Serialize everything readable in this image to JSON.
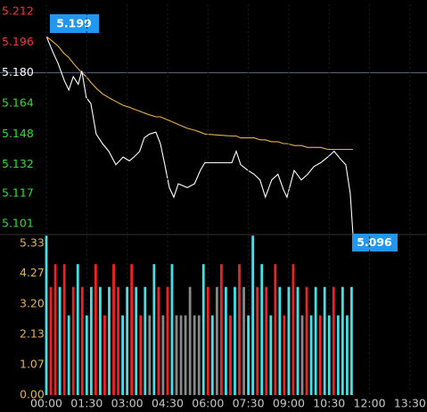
{
  "chart_data": [
    {
      "type": "line",
      "x": [
        0,
        16,
        26,
        40,
        50,
        60,
        71,
        79,
        89,
        99,
        111,
        125,
        139,
        155,
        171,
        185,
        195,
        208,
        218,
        230,
        244,
        254,
        264,
        274,
        284,
        294,
        314,
        330,
        343,
        353,
        413,
        423,
        433,
        449,
        463,
        476,
        488,
        502,
        516,
        528,
        536,
        552,
        568,
        582,
        596,
        611,
        627,
        641,
        655,
        667,
        677,
        683
      ],
      "series": [
        {
          "color": "#ffffff",
          "values": [
            5.199,
            5.19,
            5.185,
            5.176,
            5.171,
            5.178,
            5.174,
            5.181,
            5.167,
            5.164,
            5.148,
            5.143,
            5.139,
            5.132,
            5.136,
            5.134,
            5.136,
            5.139,
            5.146,
            5.148,
            5.149,
            5.143,
            5.132,
            5.12,
            5.115,
            5.122,
            5.12,
            5.122,
            5.129,
            5.133,
            5.133,
            5.139,
            5.132,
            5.129,
            5.127,
            5.124,
            5.115,
            5.124,
            5.127,
            5.119,
            5.115,
            5.129,
            5.124,
            5.127,
            5.131,
            5.133,
            5.136,
            5.139,
            5.135,
            5.132,
            5.117,
            5.096
          ]
        },
        {
          "color": "#e8b04a",
          "values": [
            5.199,
            5.196,
            5.194,
            5.19,
            5.188,
            5.185,
            5.182,
            5.18,
            5.178,
            5.175,
            5.172,
            5.169,
            5.167,
            5.165,
            5.163,
            5.162,
            5.161,
            5.16,
            5.159,
            5.158,
            5.157,
            5.157,
            5.156,
            5.155,
            5.154,
            5.153,
            5.151,
            5.15,
            5.149,
            5.148,
            5.147,
            5.147,
            5.146,
            5.146,
            5.146,
            5.145,
            5.145,
            5.144,
            5.144,
            5.143,
            5.143,
            5.142,
            5.142,
            5.141,
            5.141,
            5.141,
            5.14,
            5.14,
            5.14,
            5.14,
            5.14,
            5.14
          ]
        }
      ],
      "xlim": [
        0,
        848
      ],
      "ylim": [
        5.0955,
        5.2157
      ],
      "yticks": [
        5.212,
        5.196,
        {
          "value": 5.18,
          "label": "5.180"
        },
        5.164,
        5.148,
        5.132,
        5.117,
        5.101
      ],
      "ytick_colors": [
        "#ff3333",
        "#ff3333",
        "#ffffff",
        "#33dd33",
        "#33dd33",
        "#33dd33",
        "#33dd33",
        "#33dd33"
      ],
      "baseline": 5.18,
      "label_color": "#2196f3"
    },
    {
      "type": "bar",
      "x": [
        0,
        10,
        20,
        30,
        40,
        50,
        60,
        70,
        80,
        90,
        100,
        110,
        120,
        130,
        140,
        150,
        160,
        170,
        180,
        190,
        200,
        210,
        220,
        230,
        240,
        250,
        260,
        270,
        280,
        290,
        300,
        310,
        320,
        330,
        340,
        350,
        360,
        370,
        380,
        390,
        400,
        410,
        420,
        430,
        440,
        450,
        460,
        470,
        480,
        490,
        500,
        510,
        520,
        530,
        540,
        550,
        560,
        570,
        580,
        590,
        600,
        610,
        620,
        630,
        640,
        650,
        660,
        670,
        680
      ],
      "values": [
        5.6,
        3.8,
        4.6,
        3.8,
        4.6,
        2.8,
        3.8,
        4.6,
        3.8,
        2.8,
        3.8,
        4.6,
        3.8,
        2.8,
        3.8,
        4.6,
        3.8,
        2.8,
        3.8,
        4.6,
        3.8,
        2.8,
        3.8,
        2.8,
        4.6,
        3.8,
        2.8,
        3.8,
        4.6,
        2.8,
        2.8,
        2.8,
        3.8,
        2.8,
        2.8,
        4.6,
        3.8,
        2.8,
        3.8,
        4.6,
        3.8,
        2.8,
        3.8,
        4.6,
        3.8,
        2.8,
        5.6,
        3.8,
        4.6,
        3.8,
        2.8,
        4.6,
        3.8,
        2.8,
        3.8,
        4.6,
        3.8,
        2.8,
        3.8,
        2.8,
        3.8,
        2.8,
        3.8,
        2.8,
        3.8,
        2.8,
        3.8,
        2.8,
        3.8
      ],
      "colors": [
        "#44e0e8",
        "#ee2222",
        "#ee2222",
        "#44e0e8",
        "#ee2222",
        "#44e0e8",
        "#ee2222",
        "#44e0e8",
        "#ee2222",
        "#44e0e8",
        "#44e0e8",
        "#ee2222",
        "#44e0e8",
        "#ee2222",
        "#44e0e8",
        "#ee2222",
        "#ee2222",
        "#44e0e8",
        "#44e0e8",
        "#ee2222",
        "#44e0e8",
        "#ee2222",
        "#44e0e8",
        "#888888",
        "#44e0e8",
        "#ee2222",
        "#888888",
        "#ee2222",
        "#44e0e8",
        "#888888",
        "#888888",
        "#888888",
        "#888888",
        "#888888",
        "#888888",
        "#44e0e8",
        "#ee2222",
        "#44e0e8",
        "#888888",
        "#ee2222",
        "#44e0e8",
        "#ee2222",
        "#44e0e8",
        "#ee2222",
        "#888888",
        "#44e0e8",
        "#44e0e8",
        "#ee2222",
        "#44e0e8",
        "#ee2222",
        "#44e0e8",
        "#ee2222",
        "#44e0e8",
        "#ee2222",
        "#44e0e8",
        "#ee2222",
        "#44e0e8",
        "#888888",
        "#ee2222",
        "#44e0e8",
        "#44e0e8",
        "#ee2222",
        "#44e0e8",
        "#44e0e8",
        "#ee2222",
        "#44e0e8",
        "#44e0e8",
        "#44e0e8",
        "#44e0e8"
      ],
      "xlim": [
        0,
        848
      ],
      "ylim": [
        0,
        5.64
      ],
      "yticks": [
        5.33,
        4.27,
        {
          "value": 3.2,
          "label": "3.20"
        },
        2.13,
        1.07,
        {
          "value": 0,
          "label": "0.00"
        }
      ],
      "ytick_color": "#e8b04a",
      "xticks": [
        {
          "value": 0,
          "label": "00:00"
        },
        {
          "value": 90,
          "label": "01:30"
        },
        {
          "value": 180,
          "label": "03:00"
        },
        {
          "value": 270,
          "label": "04:30"
        },
        {
          "value": 360,
          "label": "06:00"
        },
        {
          "value": 450,
          "label": "07:30"
        },
        {
          "value": 540,
          "label": "09:00"
        },
        {
          "value": 630,
          "label": "10:30"
        },
        {
          "value": 720,
          "label": "12:00"
        },
        {
          "value": 810,
          "label": "13:30"
        }
      ],
      "grid": true
    }
  ]
}
